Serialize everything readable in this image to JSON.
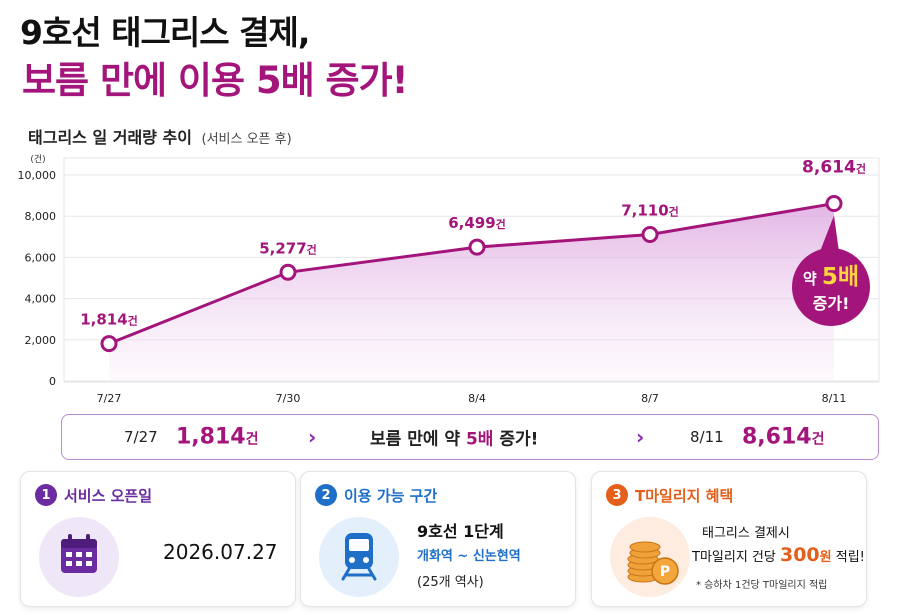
{
  "header": {
    "title_line1": "9호선 태그리스 결제,",
    "title_line2": "보름 만에 이용 5배 증가!"
  },
  "chart_heading": {
    "title": "태그리스 일 거래량 추이",
    "subtitle": "(서비스 오픈 후)"
  },
  "chart_data": {
    "type": "area",
    "title": "태그리스 일 거래량 추이",
    "subtitle": "(서비스 오픈 후)",
    "y_unit": "(건)",
    "ylim": [
      0,
      10000
    ],
    "yticks": [
      0,
      2000,
      4000,
      6000,
      8000,
      10000
    ],
    "ytick_labels": [
      "0",
      "2,000",
      "4,000",
      "6,000",
      "8,000",
      "10,000"
    ],
    "categories": [
      "7/27",
      "7/30",
      "8/4",
      "8/7",
      "8/11"
    ],
    "values": [
      1814,
      5277,
      6499,
      7110,
      8614
    ],
    "value_labels": [
      "1,814",
      "5,277",
      "6,499",
      "7,110",
      "8,614"
    ],
    "value_suffix": "건",
    "grid": true,
    "line_color": "#a3157a",
    "fill_color": "#e9c2ea",
    "callout": {
      "prefix": "약",
      "highlight": "5배",
      "suffix": "증가!",
      "bg_color": "#a3157a",
      "highlight_color": "#ffd23f"
    }
  },
  "summary": {
    "start_date": "7/27",
    "start_value": "1,814",
    "unit": "건",
    "middle_prefix": "보름 만에 약",
    "middle_highlight": "5배",
    "middle_suffix": "증가!",
    "end_date": "8/11",
    "end_value": "8,614"
  },
  "cards": {
    "service": {
      "number": "1",
      "title": "서비스 오픈일",
      "icon": "calendar-icon",
      "date": "2026.07.27"
    },
    "section": {
      "number": "2",
      "title": "이용 가능 구간",
      "icon": "train-icon",
      "line1": "9호선 1단계",
      "line2": "개화역 ~ 신논현역",
      "line3": "(25개 역사)"
    },
    "mileage": {
      "number": "3",
      "title": "T마일리지 혜택",
      "icon": "coins-icon",
      "coin_label": "P",
      "line1": "태그리스 결제시",
      "line2_prefix": "T마일리지 건당",
      "line2_amount": "300",
      "line2_won": "원",
      "line2_suffix": "적립!",
      "note": "* 승하차 1건당 T마일리지 적립"
    }
  }
}
